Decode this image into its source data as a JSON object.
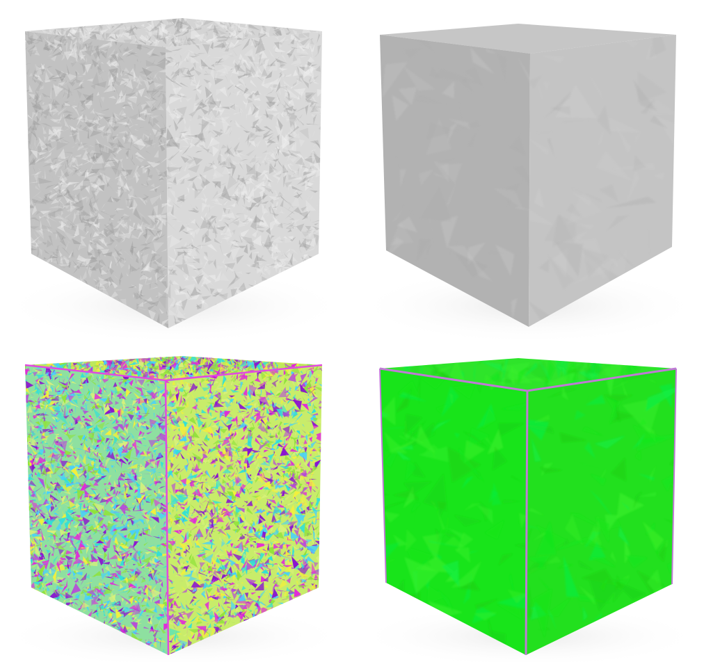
{
  "figure": {
    "panels": [
      {
        "position": "top-left",
        "subject": "cube",
        "shading": "gray",
        "surface": "noisy",
        "colors": {
          "top": "#d4d4d4",
          "left": "#c2c2c2",
          "right": "#d9d9d9",
          "bump_dark": "#9a9a9a",
          "bump_light": "#f2f2f2"
        }
      },
      {
        "position": "top-right",
        "subject": "cube",
        "shading": "gray",
        "surface": "smooth",
        "colors": {
          "top": "#c6c6c6",
          "left": "#b2b2b2",
          "right": "#c4c4c4",
          "bump_dark": "#a8a8a8",
          "bump_light": "#d2d2d2"
        }
      },
      {
        "position": "bottom-left",
        "subject": "cube",
        "shading": "color-map",
        "surface": "noisy",
        "palette": [
          "#2fe0d8",
          "#8fe23a",
          "#f2f03c",
          "#b64ad8",
          "#8a12d0",
          "#e12ad8",
          "#44d0ff",
          "#d8f07a"
        ],
        "edge_color": "#e24ae0"
      },
      {
        "position": "bottom-right",
        "subject": "cube",
        "shading": "color-map",
        "surface": "smooth",
        "palette": [
          "#12e61a",
          "#1cd012",
          "#3af02a",
          "#0cf04a"
        ],
        "edge_color": "#c07ad6"
      }
    ]
  }
}
